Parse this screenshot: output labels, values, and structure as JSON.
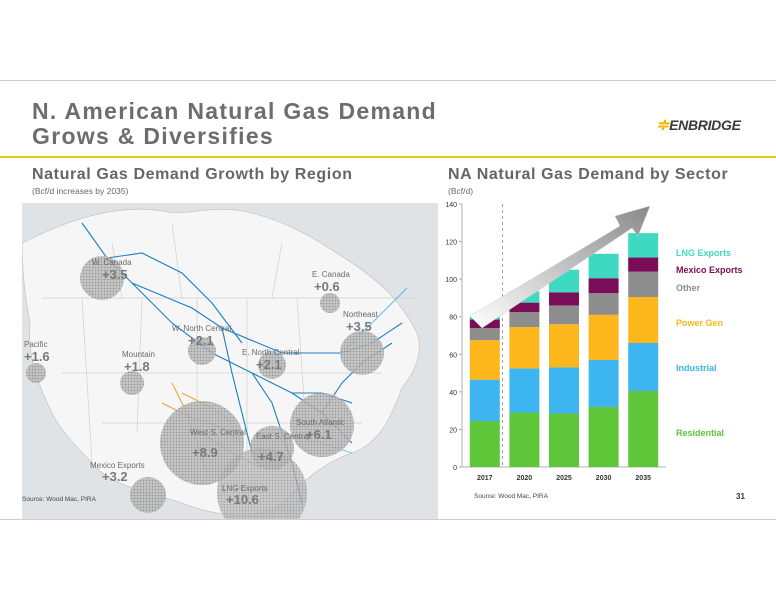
{
  "slide": {
    "title_line1": "N. American Natural Gas Demand",
    "title_line2": "Grows & Diversifies",
    "logo_text": "ENBRIDGE",
    "page_number": "31"
  },
  "left_panel": {
    "heading": "Natural Gas Demand Growth by Region",
    "subheading": "(Bcf/d increases by 2035)",
    "source": "Source: Wood Mac, PIRA",
    "regions": [
      {
        "name": "W. Canada",
        "value": "+3.5"
      },
      {
        "name": "E. Canada",
        "value": "+0.6"
      },
      {
        "name": "Northeast",
        "value": "+3.5"
      },
      {
        "name": "Pacific",
        "value": "+1.6"
      },
      {
        "name": "W. North Central",
        "value": "+2.1"
      },
      {
        "name": "Mountain",
        "value": "+1.8"
      },
      {
        "name": "E. North Central",
        "value": "+2.1"
      },
      {
        "name": "South Atlantic",
        "value": "+6.1"
      },
      {
        "name": "West S. Central",
        "value": "+8.9"
      },
      {
        "name": "East S. Central",
        "value": "+4.7"
      },
      {
        "name": "Mexico Exports",
        "value": "+3.2"
      },
      {
        "name": "LNG Exports",
        "value": "+10.6"
      }
    ]
  },
  "right_panel": {
    "heading": "NA Natural Gas Demand by Sector",
    "source": "Source: Wood Mac, PIRA"
  },
  "colors": {
    "residential": "#5fc63a",
    "industrial": "#3cb5f0",
    "power_gen": "#fdb71c",
    "other": "#8d8d8d",
    "mexico_exports": "#7a0d57",
    "lng_exports": "#3fd9c2",
    "accent_gold": "#f0c419"
  },
  "chart_data": {
    "type": "bar",
    "stacked": true,
    "ylabel": "(Bcf/d)",
    "ylim": [
      0,
      140
    ],
    "yticks": [
      0,
      20,
      40,
      60,
      80,
      100,
      120,
      140
    ],
    "categories": [
      "2017",
      "2020",
      "2025",
      "2030",
      "2035"
    ],
    "series": [
      {
        "name": "Residential",
        "values": [
          24.5,
          29,
          28.5,
          32,
          40.5
        ]
      },
      {
        "name": "Industrial",
        "values": [
          22,
          23.5,
          24.5,
          25,
          25.5
        ]
      },
      {
        "name": "Power Gen",
        "values": [
          21,
          22,
          23,
          24,
          24.5
        ]
      },
      {
        "name": "Other",
        "values": [
          6.5,
          8,
          10,
          11.5,
          13.5
        ]
      },
      {
        "name": "Mexico Exports",
        "values": [
          4.5,
          5,
          7,
          8,
          7.5
        ]
      },
      {
        "name": "LNG Exports",
        "values": [
          1.5,
          6,
          12,
          13,
          13
        ]
      }
    ],
    "legend_position": "right",
    "grid": false
  }
}
